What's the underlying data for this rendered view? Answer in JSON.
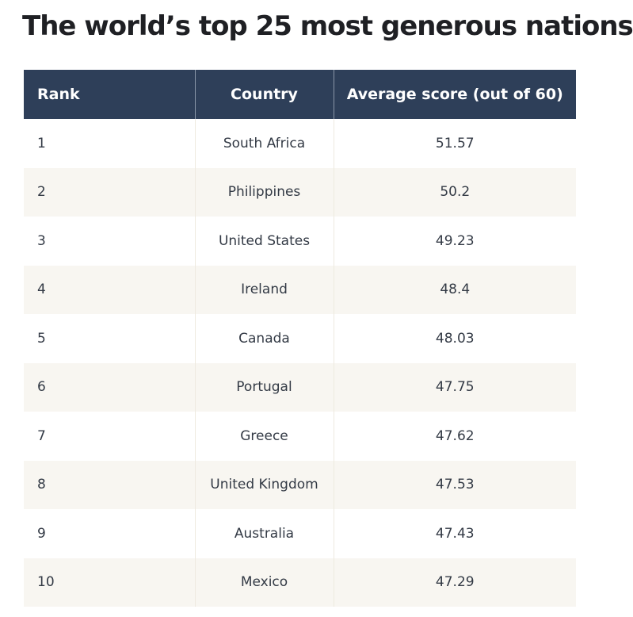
{
  "title": "The world’s top 25 most generous nations",
  "table": {
    "headers": [
      "Rank",
      "Country",
      "Average score (out of 60)"
    ],
    "rows": [
      {
        "rank": "1",
        "country": "South Africa",
        "score": "51.57"
      },
      {
        "rank": "2",
        "country": "Philippines",
        "score": "50.2"
      },
      {
        "rank": "3",
        "country": "United States",
        "score": "49.23"
      },
      {
        "rank": "4",
        "country": "Ireland",
        "score": "48.4"
      },
      {
        "rank": "5",
        "country": "Canada",
        "score": "48.03"
      },
      {
        "rank": "6",
        "country": "Portugal",
        "score": "47.75"
      },
      {
        "rank": "7",
        "country": "Greece",
        "score": "47.62"
      },
      {
        "rank": "8",
        "country": "United Kingdom",
        "score": "47.53"
      },
      {
        "rank": "9",
        "country": "Australia",
        "score": "47.43"
      },
      {
        "rank": "10",
        "country": "Mexico",
        "score": "47.29"
      }
    ]
  },
  "colors": {
    "header_background": "#2e3f59",
    "header_text": "#ffffff",
    "alt_row_background": "#f8f6f1"
  }
}
